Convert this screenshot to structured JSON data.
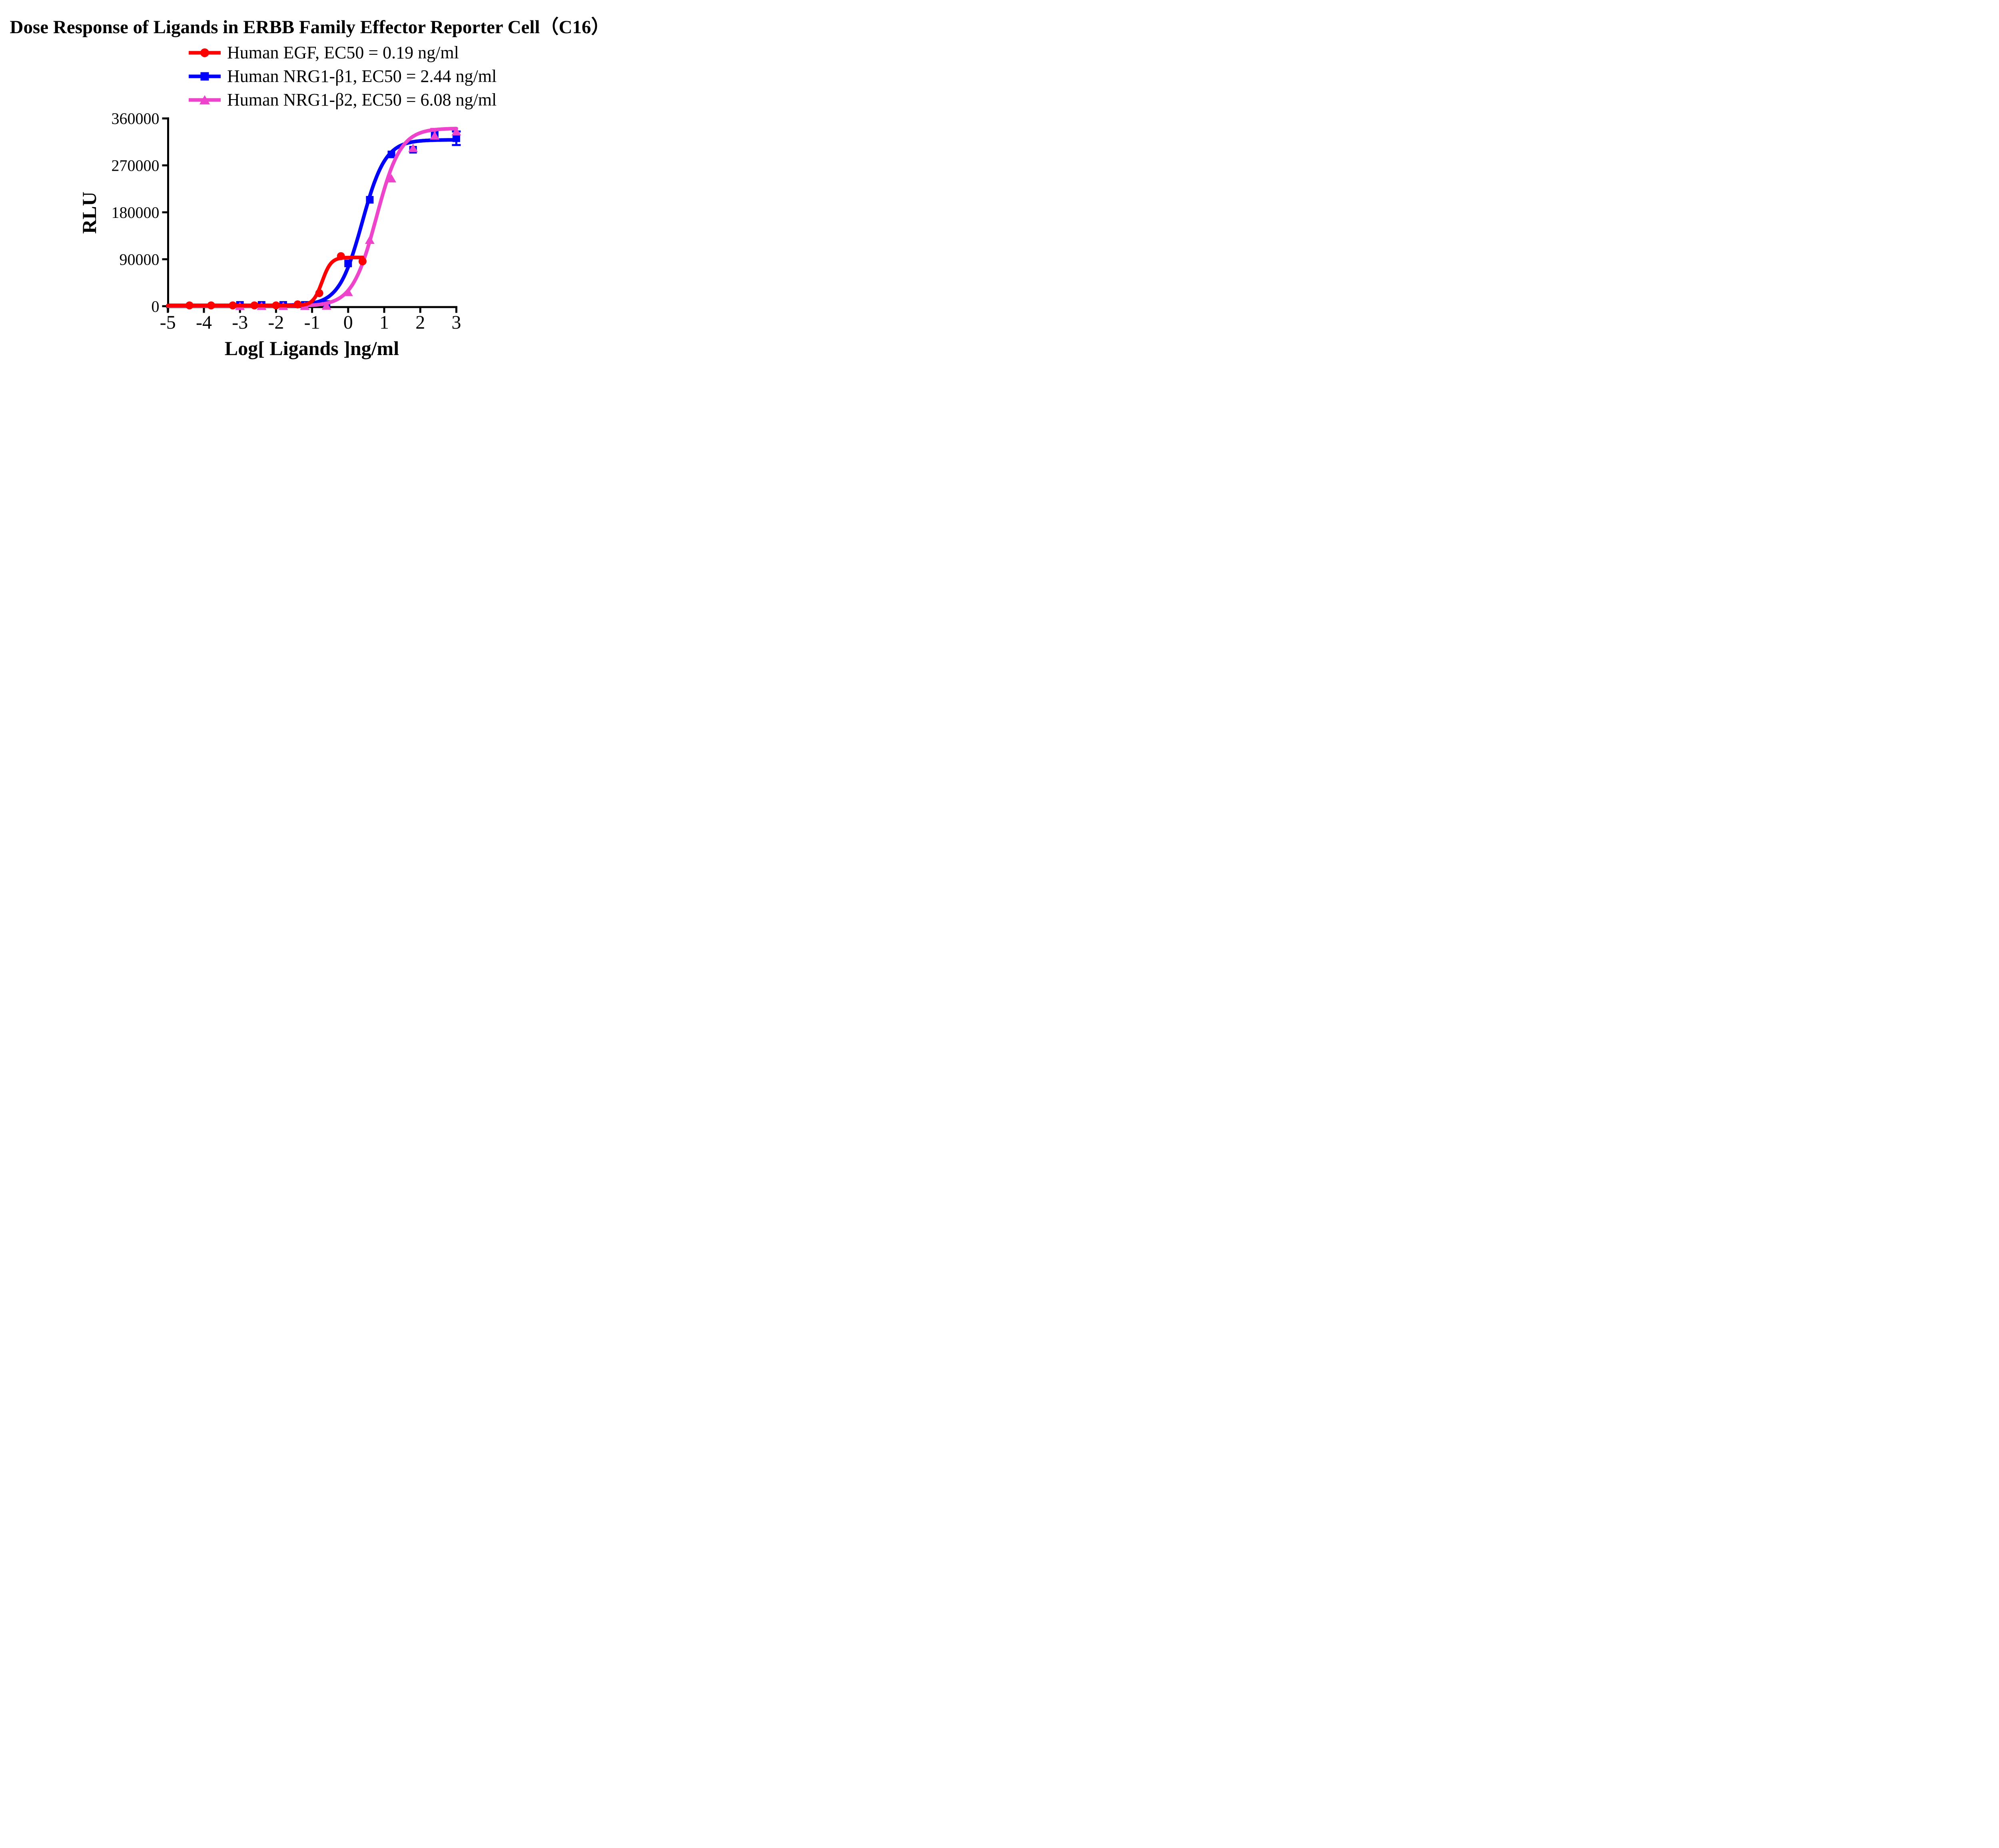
{
  "title": "Dose Response of Ligands in ERBB Family Effector Reporter Cell（C16）",
  "chart_data": {
    "type": "line",
    "title": "Dose Response of Ligands in ERBB Family Effector Reporter Cell（C16）",
    "xlabel": "Log[ Ligands ]ng/ml",
    "ylabel": "RLU",
    "xlim": [
      -5,
      3
    ],
    "ylim": [
      0,
      360000
    ],
    "x_ticks": [
      -5,
      -4,
      -3,
      -2,
      -1,
      0,
      1,
      2,
      3
    ],
    "y_ticks": [
      0,
      90000,
      180000,
      270000,
      360000
    ],
    "grid": false,
    "legend_position": "top-center",
    "axis_color": "#000000",
    "background_color": "#ffffff",
    "series": [
      {
        "id": "human-egf",
        "label": "Human EGF, EC50 = 0.19 ng/ml",
        "ec50_ng_ml": 0.19,
        "color": "#FF0000",
        "marker": "circle",
        "x": [
          -4.4,
          -3.8,
          -3.2,
          -2.6,
          -2.0,
          -1.4,
          -0.8,
          -0.2,
          0.4
        ],
        "y": [
          1500,
          1500,
          1500,
          1500,
          1500,
          3500,
          25000,
          96000,
          86000
        ],
        "fit": {
          "bottom": 1200,
          "top": 93500,
          "log_ec50": -0.721,
          "hill": 3.5,
          "x_range": [
            -5,
            0.42
          ]
        },
        "error_bars": []
      },
      {
        "id": "human-nrg1-b1",
        "label": "Human NRG1-β1, EC50 = 2.44 ng/ml",
        "ec50_ng_ml": 2.44,
        "color": "#0000FF",
        "marker": "square",
        "x": [
          -3.0,
          -2.4,
          -1.8,
          -1.2,
          -0.6,
          0.0,
          0.6,
          1.2,
          1.8,
          2.4,
          3.0
        ],
        "y": [
          2500,
          2500,
          2500,
          2500,
          4000,
          82000,
          204000,
          291000,
          300000,
          330000,
          322000
        ],
        "fit": {
          "bottom": 1500,
          "top": 319000,
          "log_ec50": 0.387,
          "hill": 1.35,
          "x_range": [
            -5,
            3
          ]
        },
        "error_bars": [
          {
            "x": 3.0,
            "y": 322000,
            "plus": 13000,
            "minus": 13000
          }
        ]
      },
      {
        "id": "human-nrg1-b2",
        "label": "Human NRG1-β2, EC50 = 6.08 ng/ml",
        "ec50_ng_ml": 6.08,
        "color": "#EE44CC",
        "marker": "triangle",
        "x": [
          -3.0,
          -2.4,
          -1.8,
          -1.2,
          -0.6,
          0.0,
          0.6,
          1.2,
          1.8,
          2.4,
          3.0
        ],
        "y": [
          300,
          300,
          300,
          300,
          800,
          27000,
          127000,
          245000,
          303000,
          327000,
          335000
        ],
        "fit": {
          "bottom": 300,
          "top": 341000,
          "log_ec50": 0.784,
          "hill": 1.3,
          "x_range": [
            -5,
            3
          ]
        },
        "error_bars": [
          {
            "x": 2.4,
            "y": 327000,
            "plus": 13000,
            "minus": 0
          }
        ]
      }
    ],
    "paint_order": [
      1,
      2,
      0
    ]
  }
}
